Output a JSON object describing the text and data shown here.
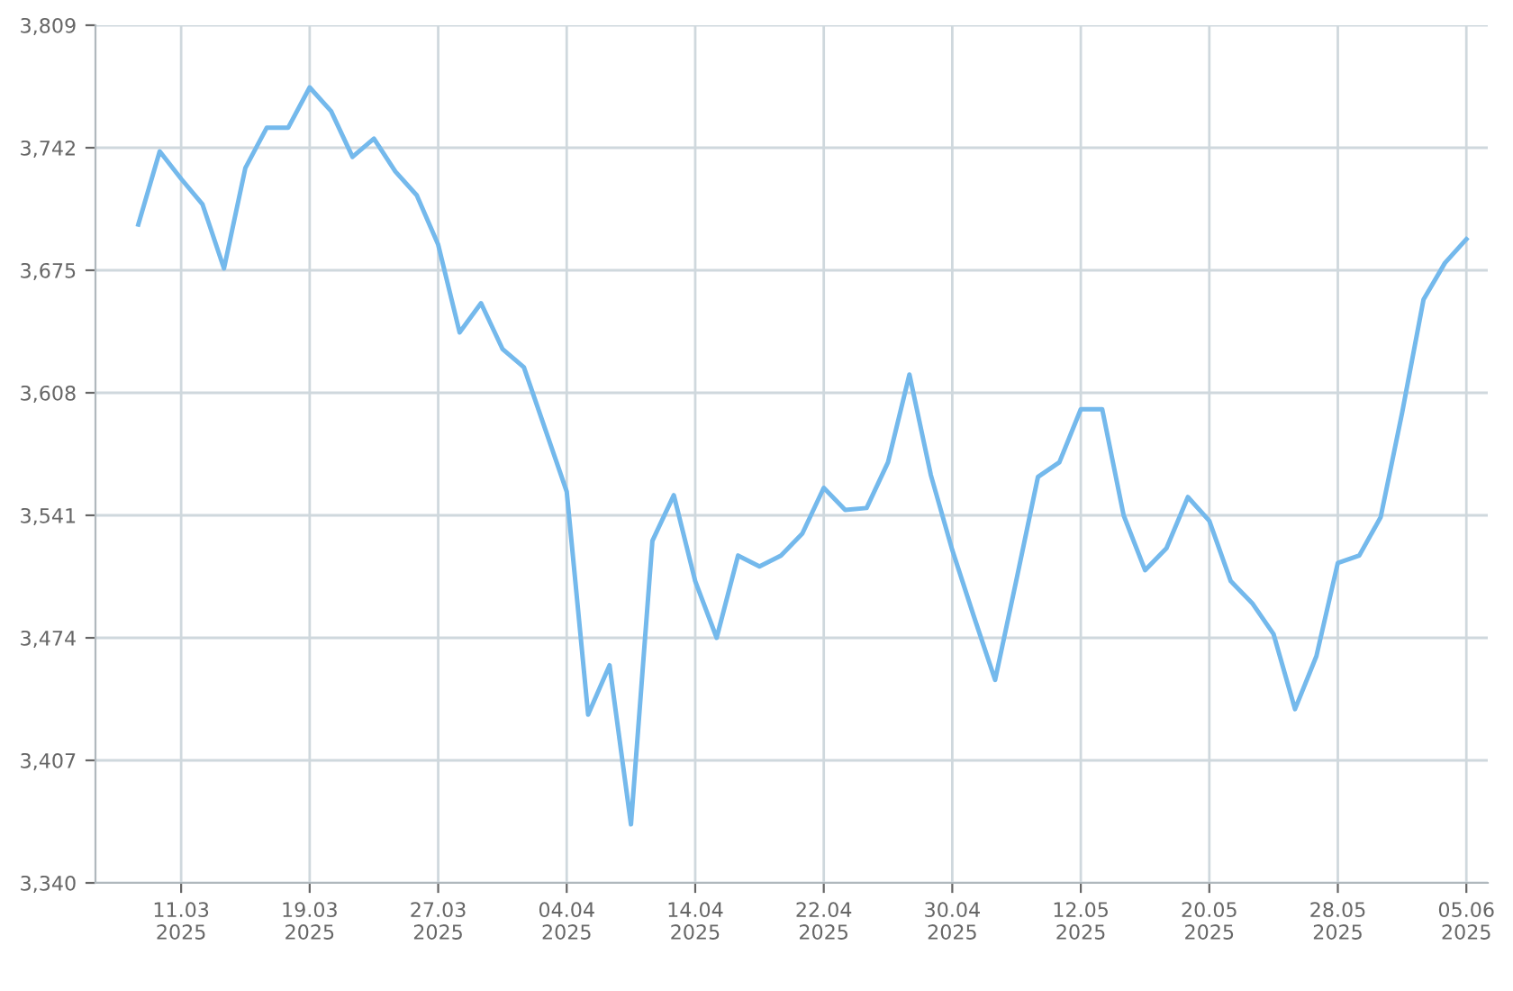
{
  "chart_data": {
    "type": "line",
    "categories": [
      null,
      null,
      "11.03\n2025",
      null,
      null,
      null,
      null,
      null,
      "19.03\n2025",
      null,
      null,
      null,
      null,
      null,
      "27.03\n2025",
      null,
      null,
      null,
      null,
      null,
      "04.04\n2025",
      null,
      null,
      null,
      null,
      null,
      "14.04\n2025",
      null,
      null,
      null,
      null,
      null,
      "22.04\n2025",
      null,
      null,
      null,
      null,
      null,
      "30.04\n2025",
      null,
      null,
      null,
      null,
      null,
      "12.05\n2025",
      null,
      null,
      null,
      null,
      null,
      "20.05\n2025",
      null,
      null,
      null,
      null,
      null,
      "28.05\n2025",
      null,
      null,
      null,
      null,
      null,
      "05.06\n2025"
    ],
    "series": [
      {
        "color": "#74b9ec",
        "values": [
          3700,
          3740,
          3725,
          3711,
          3676,
          3731,
          3753,
          3753,
          3775,
          3762,
          3737,
          3747,
          3729,
          3716,
          3689,
          3641,
          3657,
          3632,
          3622,
          3588,
          3554,
          3432,
          3459,
          3372,
          3527,
          3552,
          3505,
          3474,
          3519,
          3513,
          3519,
          3531,
          3556,
          3544,
          3545,
          3570,
          3618,
          3563,
          3522,
          3486,
          3451,
          3506,
          3562,
          3570,
          3599,
          3599,
          3541,
          3511,
          3523,
          3551,
          3538,
          3505,
          3493,
          3476,
          3435,
          3464,
          3515,
          3519,
          3540,
          3597,
          3659,
          3679,
          3692
        ]
      }
    ],
    "ylim": [
      3340,
      3809
    ],
    "yticks": [
      {
        "value": 3340,
        "label": "3,340"
      },
      {
        "value": 3407,
        "label": "3,407"
      },
      {
        "value": 3474,
        "label": "3,474"
      },
      {
        "value": 3541,
        "label": "3,541"
      },
      {
        "value": 3608,
        "label": "3,608"
      },
      {
        "value": 3675,
        "label": "3,675"
      },
      {
        "value": 3742,
        "label": "3,742"
      },
      {
        "value": 3809,
        "label": "3,809"
      }
    ],
    "grid": true,
    "marker": "none",
    "line_style": "solid"
  }
}
